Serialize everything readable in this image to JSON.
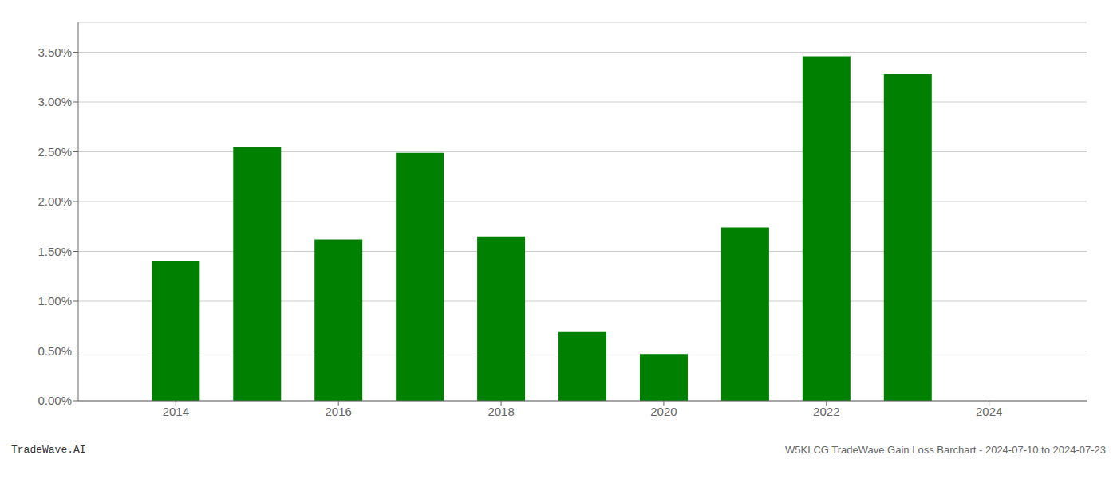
{
  "chart_data": {
    "type": "bar",
    "x": [
      2014,
      2015,
      2016,
      2017,
      2018,
      2019,
      2020,
      2021,
      2022,
      2023
    ],
    "values": [
      0.014,
      0.0255,
      0.0162,
      0.0249,
      0.0165,
      0.0069,
      0.0047,
      0.0174,
      0.0346,
      0.0328
    ],
    "color": "#008000",
    "xlim": [
      2012.8,
      2025.2
    ],
    "xticks": [
      2014,
      2016,
      2018,
      2020,
      2022,
      2024
    ],
    "ylim": [
      0.0,
      0.038
    ],
    "yticks": [
      {
        "value": 0.0,
        "label": "0.00%"
      },
      {
        "value": 0.005,
        "label": "0.50%"
      },
      {
        "value": 0.01,
        "label": "1.00%"
      },
      {
        "value": 0.015,
        "label": "1.50%"
      },
      {
        "value": 0.02,
        "label": "2.00%"
      },
      {
        "value": 0.025,
        "label": "2.50%"
      },
      {
        "value": 0.03,
        "label": "3.00%"
      },
      {
        "value": 0.035,
        "label": "3.50%"
      }
    ],
    "grid": true,
    "annotations": [
      "TradeWave.AI",
      "W5KLCG TradeWave Gain Loss Barchart - 2024-07-10 to 2024-07-23"
    ]
  }
}
